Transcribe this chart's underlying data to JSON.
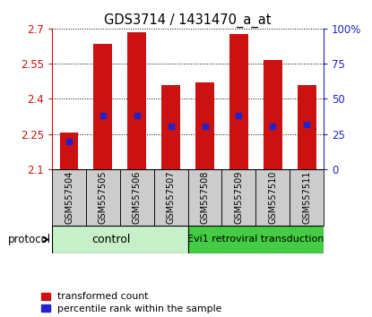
{
  "title": "GDS3714 / 1431470_a_at",
  "samples": [
    "GSM557504",
    "GSM557505",
    "GSM557506",
    "GSM557507",
    "GSM557508",
    "GSM557509",
    "GSM557510",
    "GSM557511"
  ],
  "bar_heights": [
    2.255,
    2.635,
    2.685,
    2.46,
    2.47,
    2.675,
    2.565,
    2.46
  ],
  "bar_bottom": 2.1,
  "blue_dot_values": [
    2.22,
    2.33,
    2.33,
    2.285,
    2.285,
    2.33,
    2.285,
    2.29
  ],
  "ylim_left": [
    2.1,
    2.7
  ],
  "ylim_right": [
    0,
    100
  ],
  "yticks_left": [
    2.1,
    2.25,
    2.4,
    2.55,
    2.7
  ],
  "yticks_right": [
    0,
    25,
    50,
    75,
    100
  ],
  "ytick_labels_left": [
    "2.1",
    "2.25",
    "2.4",
    "2.55",
    "2.7"
  ],
  "ytick_labels_right": [
    "0",
    "25",
    "50",
    "75",
    "100%"
  ],
  "bar_color": "#cc1111",
  "dot_color": "#2222cc",
  "control_samples": 4,
  "control_label": "control",
  "treatment_label": "Evi1 retroviral transduction",
  "protocol_label": "protocol",
  "legend_bar_label": "transformed count",
  "legend_dot_label": "percentile rank within the sample",
  "control_bg": "#c8f0c8",
  "treatment_bg": "#44cc44",
  "sample_bg": "#cccccc",
  "bar_width": 0.55,
  "figsize": [
    4.15,
    3.54
  ],
  "dpi": 100
}
